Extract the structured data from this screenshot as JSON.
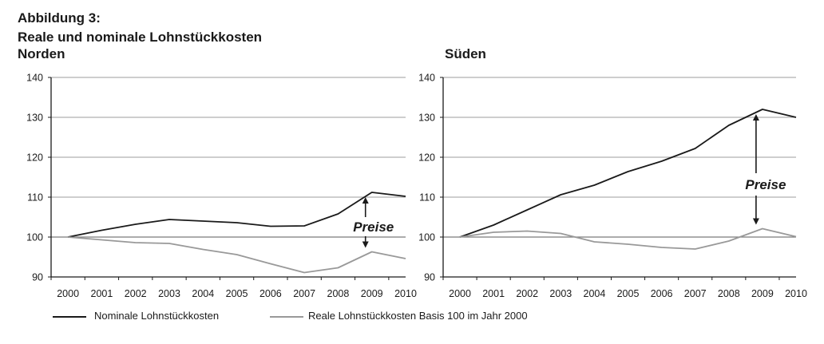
{
  "header": {
    "figure_label": "Abbildung 3:",
    "title": "Reale und nominale Lohnstückkosten"
  },
  "legend": {
    "nominal": "Nominale Lohnstückkosten",
    "real": "Reale Lohnstückkosten Basis 100 im Jahr 2000"
  },
  "colors": {
    "nominal": "#1a1a1a",
    "real": "#999999",
    "grid": "#b0b0b0"
  },
  "chart_data": [
    {
      "type": "line",
      "title": "Norden",
      "x": [
        "2000",
        "2001",
        "2002",
        "2003",
        "2004",
        "2005",
        "2006",
        "2007",
        "2008",
        "2009",
        "2010"
      ],
      "ylim": [
        90,
        140
      ],
      "yticks": [
        90,
        100,
        110,
        120,
        130,
        140
      ],
      "grid": true,
      "series": [
        {
          "name": "Nominale Lohnstückkosten",
          "values": [
            100,
            101.7,
            103.2,
            104.4,
            104.0,
            103.6,
            102.7,
            102.8,
            105.8,
            111.2,
            110.2
          ]
        },
        {
          "name": "Reale Lohnstückkosten Basis 100 im Jahr 2000",
          "values": [
            100,
            99.3,
            98.6,
            98.4,
            96.9,
            95.6,
            93.3,
            91.1,
            92.3,
            96.3,
            94.6
          ]
        }
      ],
      "annotation": "Preise"
    },
    {
      "type": "line",
      "title": "Süden",
      "x": [
        "2000",
        "2001",
        "2002",
        "2003",
        "2004",
        "2005",
        "2006",
        "2007",
        "2008",
        "2009",
        "2010"
      ],
      "ylim": [
        90,
        140
      ],
      "yticks": [
        90,
        100,
        110,
        120,
        130,
        140
      ],
      "grid": true,
      "series": [
        {
          "name": "Nominale Lohnstückkosten",
          "values": [
            100,
            103.0,
            106.8,
            110.6,
            113.0,
            116.4,
            119.0,
            122.2,
            128.0,
            132.0,
            130.0
          ]
        },
        {
          "name": "Reale Lohnstückkosten Basis 100 im Jahr 2000",
          "values": [
            100,
            101.2,
            101.5,
            100.9,
            98.8,
            98.2,
            97.4,
            97.0,
            99.0,
            102.1,
            100.1
          ]
        }
      ],
      "annotation": "Preise"
    }
  ]
}
